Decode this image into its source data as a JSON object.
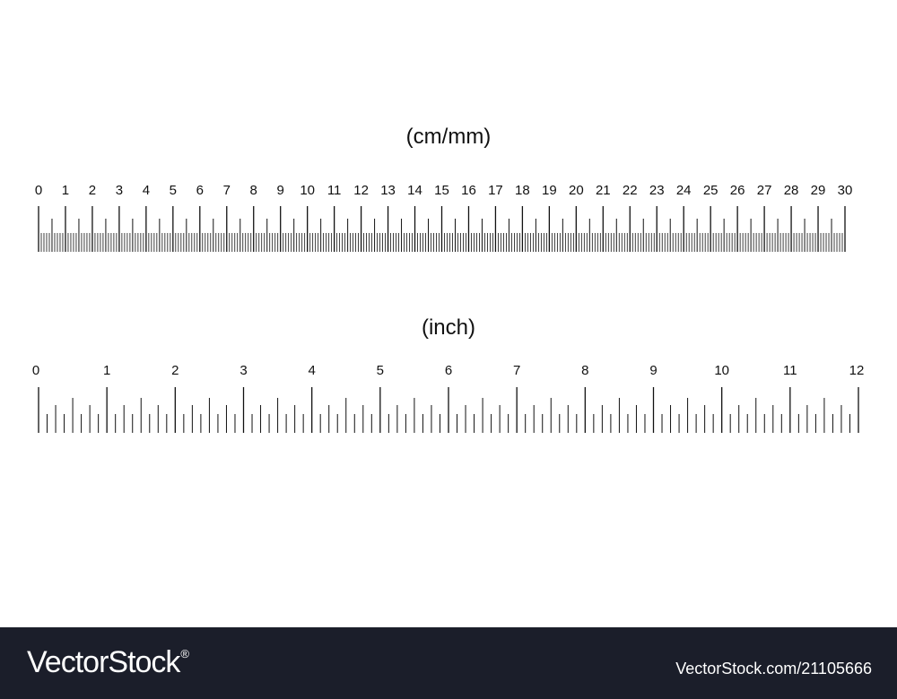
{
  "cm_ruler": {
    "unit_label": "(cm/mm)",
    "major_labels": [
      "0",
      "1",
      "2",
      "3",
      "4",
      "5",
      "6",
      "7",
      "8",
      "9",
      "10",
      "11",
      "12",
      "13",
      "14",
      "15",
      "16",
      "17",
      "18",
      "19",
      "20",
      "21",
      "22",
      "23",
      "24",
      "25",
      "26",
      "27",
      "28",
      "29",
      "30"
    ],
    "length": 30,
    "minor_divisions_per_unit": 10
  },
  "inch_ruler": {
    "unit_label": "(inch)",
    "major_labels": [
      "0",
      "1",
      "2",
      "3",
      "4",
      "5",
      "6",
      "7",
      "8",
      "9",
      "10",
      "11",
      "12"
    ],
    "length": 12,
    "minor_divisions_per_unit": 8
  },
  "footer": {
    "brand": "VectorStock",
    "brand_mark": "®",
    "credit": "VectorStock.com/21105666"
  },
  "colors": {
    "ink": "#111111",
    "footer_background": "#1b1e2a",
    "footer_text": "#ffffff"
  }
}
